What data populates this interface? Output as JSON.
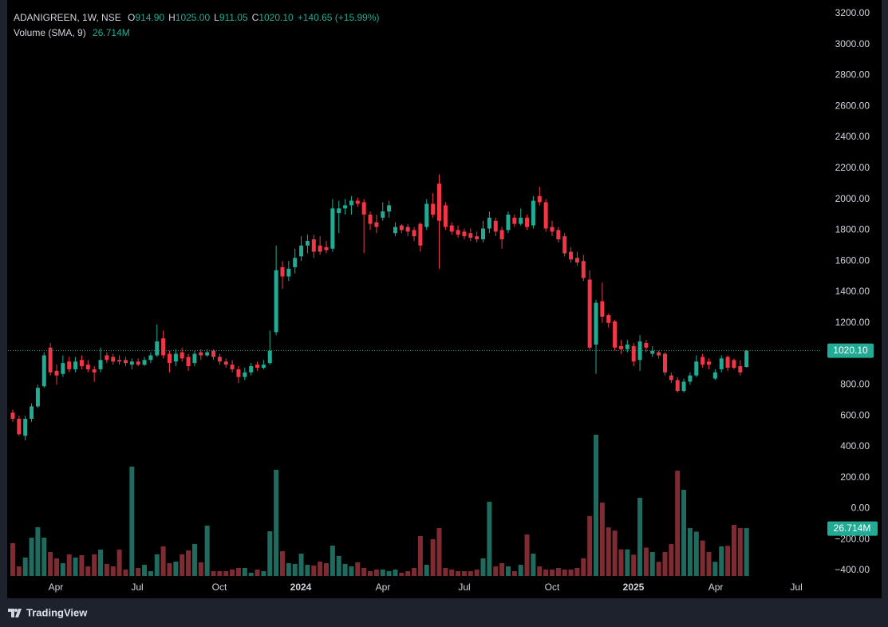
{
  "chart_data": {
    "type": "candlestick",
    "header": {
      "symbol": "ADANIGREEN, 1W, NSE",
      "ohlc": [
        {
          "label": "O",
          "value": "914.90"
        },
        {
          "label": "H",
          "value": "1025.00"
        },
        {
          "label": "L",
          "value": "911.05"
        },
        {
          "label": "C",
          "value": "1020.10"
        }
      ],
      "change": "+140.65 (+15.99%)",
      "volume_label": "Volume (SMA, 9)"
    },
    "volume_sma": 26.714,
    "volume_sma_label": "26.714M",
    "footer": "TradingView",
    "up_color": "#22ab94",
    "down_color": "#f23645",
    "volume_up_color": "#1f6b5f",
    "volume_down_color": "#7e2b32",
    "open": [
      620,
      580,
      470,
      580,
      660,
      790,
      1040,
      890,
      870,
      950,
      900,
      960,
      930,
      900,
      900,
      990,
      980,
      960,
      960,
      930,
      950,
      930,
      960,
      990,
      1100,
      1000,
      950,
      1010,
      980,
      940,
      1010,
      990,
      1020,
      980,
      950,
      930,
      900,
      850,
      880,
      930,
      910,
      940,
      1140,
      1560,
      1500,
      1560,
      1630,
      1700,
      1740,
      1700,
      1690,
      1680,
      1910,
      1940,
      1960,
      1990,
      1980,
      1900,
      1850,
      1880,
      1920,
      1780,
      1830,
      1820,
      1800,
      1840,
      1820,
      1970,
      2100,
      1960,
      1830,
      1800,
      1790,
      1780,
      1760,
      1740,
      1810,
      1860,
      1800,
      1800,
      1880,
      1840,
      1880,
      1830,
      2020,
      1980,
      1820,
      1800,
      1760,
      1660,
      1620,
      1600,
      1480,
      1060,
      1340,
      1250,
      1210,
      1050,
      1030,
      1050,
      960,
      1070,
      1000,
      1010,
      1000,
      860,
      830,
      760,
      820,
      860,
      980,
      950,
      840,
      900,
      980,
      960,
      920,
      914.9
    ],
    "high": [
      640,
      600,
      600,
      680,
      800,
      1010,
      1070,
      930,
      990,
      980,
      980,
      990,
      960,
      920,
      1040,
      1010,
      1000,
      990,
      980,
      970,
      970,
      980,
      1010,
      1190,
      1150,
      1020,
      1030,
      1040,
      1000,
      1020,
      1030,
      1030,
      1030,
      1000,
      970,
      960,
      920,
      910,
      940,
      950,
      960,
      1150,
      1700,
      1600,
      1600,
      1680,
      1760,
      1770,
      1770,
      1760,
      1730,
      2000,
      1990,
      2000,
      2020,
      2010,
      2000,
      1920,
      1900,
      1980,
      1990,
      1850,
      1840,
      1840,
      1820,
      1850,
      2000,
      2040,
      2160,
      1980,
      1850,
      1830,
      1810,
      1810,
      1790,
      1860,
      1920,
      1880,
      1820,
      1920,
      1900,
      1940,
      1900,
      2020,
      2080,
      2000,
      1860,
      1820,
      1780,
      1690,
      1660,
      1640,
      1540,
      1350,
      1460,
      1260,
      1220,
      1090,
      1090,
      1070,
      1120,
      1090,
      1050,
      1020,
      1010,
      880,
      850,
      840,
      880,
      990,
      1000,
      970,
      900,
      990,
      990,
      970,
      960,
      1025
    ],
    "low": [
      560,
      470,
      440,
      560,
      650,
      780,
      860,
      800,
      850,
      880,
      880,
      900,
      880,
      820,
      880,
      940,
      930,
      930,
      920,
      900,
      920,
      920,
      940,
      980,
      970,
      880,
      920,
      950,
      890,
      920,
      960,
      980,
      960,
      930,
      910,
      880,
      810,
      830,
      860,
      890,
      900,
      930,
      1120,
      1420,
      1470,
      1520,
      1600,
      1650,
      1620,
      1640,
      1650,
      1660,
      1780,
      1900,
      1900,
      1950,
      1650,
      1800,
      1780,
      1860,
      1880,
      1760,
      1780,
      1760,
      1730,
      1660,
      1800,
      1880,
      1550,
      1800,
      1770,
      1750,
      1740,
      1730,
      1720,
      1720,
      1780,
      1760,
      1680,
      1780,
      1820,
      1830,
      1800,
      1810,
      1960,
      1790,
      1760,
      1720,
      1630,
      1590,
      1570,
      1470,
      1020,
      870,
      1200,
      1170,
      1020,
      1000,
      1010,
      920,
      890,
      1010,
      980,
      970,
      860,
      810,
      750,
      750,
      800,
      850,
      910,
      900,
      830,
      880,
      890,
      900,
      860,
      911.05
    ],
    "close": [
      580,
      480,
      580,
      660,
      780,
      990,
      880,
      860,
      940,
      900,
      950,
      920,
      900,
      880,
      960,
      960,
      950,
      950,
      940,
      950,
      930,
      960,
      990,
      1080,
      990,
      940,
      1000,
      970,
      920,
      1000,
      990,
      1010,
      980,
      950,
      930,
      900,
      850,
      880,
      920,
      910,
      930,
      1020,
      1540,
      1500,
      1550,
      1620,
      1700,
      1730,
      1660,
      1660,
      1670,
      1940,
      1940,
      1960,
      1990,
      1970,
      1900,
      1840,
      1820,
      1920,
      1960,
      1820,
      1800,
      1790,
      1760,
      1700,
      1970,
      1900,
      1860,
      1820,
      1790,
      1770,
      1760,
      1750,
      1740,
      1810,
      1880,
      1790,
      1740,
      1900,
      1840,
      1880,
      1820,
      1990,
      1980,
      1810,
      1790,
      1740,
      1650,
      1610,
      1590,
      1490,
      1040,
      1330,
      1240,
      1200,
      1040,
      1030,
      1060,
      950,
      1080,
      1040,
      1020,
      990,
      880,
      830,
      760,
      820,
      860,
      950,
      930,
      930,
      880,
      970,
      910,
      910,
      880,
      1020.1
    ],
    "volume": [
      18.5,
      5.4,
      10.4,
      21.6,
      27.5,
      21.6,
      13.5,
      9.9,
      7.2,
      12.2,
      10.4,
      11.7,
      5.4,
      12.2,
      14.9,
      6.8,
      5.4,
      14.9,
      3.6,
      61.7,
      4.5,
      6.3,
      2.7,
      12.2,
      16.7,
      7.2,
      8.1,
      12.2,
      14.4,
      18,
      7.7,
      28.4,
      2.7,
      2.7,
      2.7,
      3.6,
      4.5,
      4.5,
      1.8,
      3.6,
      2.7,
      25.2,
      59.9,
      14,
      7.2,
      6.8,
      12.6,
      6.3,
      5.9,
      8.1,
      7.2,
      17.1,
      11.3,
      6.8,
      5.4,
      7.7,
      4.5,
      2.7,
      3.6,
      3.6,
      2.7,
      3.6,
      1.8,
      2.7,
      4.5,
      22.5,
      6.3,
      20.7,
      27,
      4.5,
      3.6,
      2.7,
      2.7,
      2.7,
      3.6,
      9.9,
      41.9,
      5.4,
      7.2,
      5.4,
      2.7,
      6.3,
      23.4,
      12.6,
      5.4,
      3.6,
      3.6,
      4.5,
      3.6,
      3.6,
      4.5,
      10,
      33.8,
      79.7,
      41.4,
      27.4,
      25.6,
      15,
      15,
      12,
      44.1,
      16,
      13.5,
      8,
      13.5,
      18,
      59.4,
      48.6,
      27,
      25,
      20,
      13.5,
      8,
      16.7,
      17,
      28.8,
      27,
      27
    ],
    "ylim": [
      -436,
      3246
    ],
    "yticks": [
      {
        "value": 3200,
        "label": "3200.00"
      },
      {
        "value": 3000,
        "label": "3000.00"
      },
      {
        "value": 2800,
        "label": "2800.00"
      },
      {
        "value": 2600,
        "label": "2600.00"
      },
      {
        "value": 2400,
        "label": "2400.00"
      },
      {
        "value": 2200,
        "label": "2200.00"
      },
      {
        "value": 2000,
        "label": "2000.00"
      },
      {
        "value": 1800,
        "label": "1800.00"
      },
      {
        "value": 1600,
        "label": "1600.00"
      },
      {
        "value": 1400,
        "label": "1400.00"
      },
      {
        "value": 1200,
        "label": "1200.00"
      },
      {
        "value": 1000,
        "label": "1000.00"
      },
      {
        "value": 800,
        "label": "800.00"
      },
      {
        "value": 600,
        "label": "600.00"
      },
      {
        "value": 400,
        "label": "400.00"
      },
      {
        "value": 200,
        "label": "200.00"
      },
      {
        "value": 0,
        "label": "0.00"
      },
      {
        "value": -200,
        "label": "−200.00"
      },
      {
        "value": -400,
        "label": "−400.00"
      }
    ],
    "xlim": [
      -0.76,
      129.0
    ],
    "xticks": [
      {
        "value": 6.87,
        "label": "Apr"
      },
      {
        "value": 19.85,
        "label": "Jul"
      },
      {
        "value": 32.95,
        "label": "Oct"
      },
      {
        "value": 45.93,
        "label": "2024"
      },
      {
        "value": 59.03,
        "label": "Apr"
      },
      {
        "value": 72.01,
        "label": "Jul"
      },
      {
        "value": 86.0,
        "label": "Oct"
      },
      {
        "value": 98.98,
        "label": "2025"
      },
      {
        "value": 112.09,
        "label": "Apr"
      },
      {
        "value": 124.94,
        "label": "Jul"
      }
    ]
  }
}
